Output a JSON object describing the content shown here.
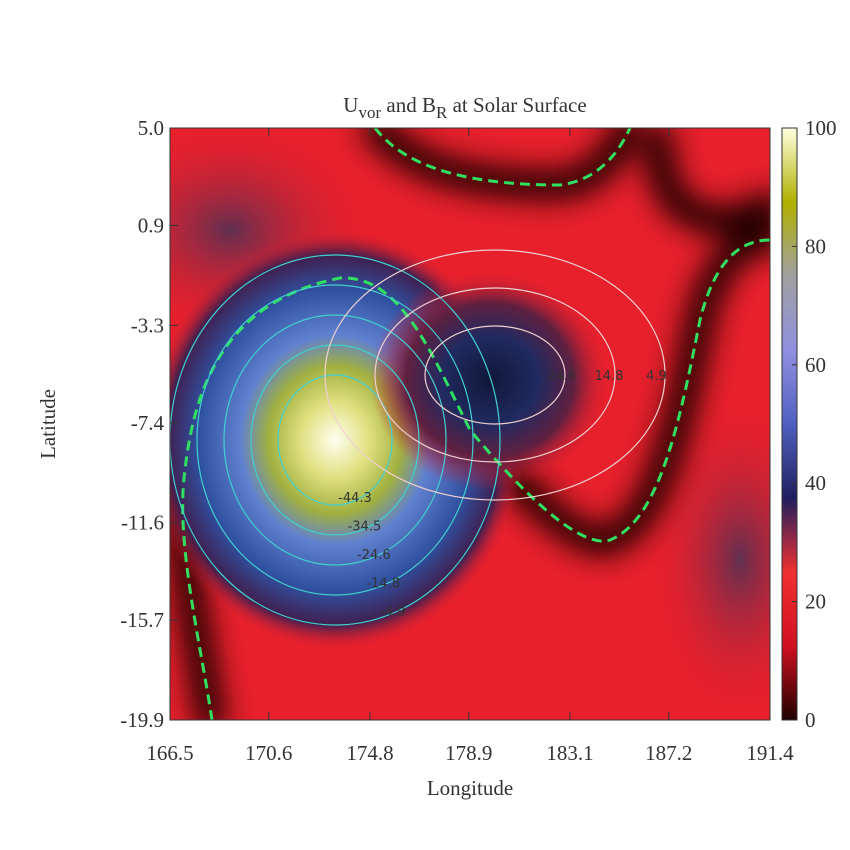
{
  "chart_data": {
    "type": "contour",
    "title": [
      "U",
      "vor",
      " and B",
      "R",
      " at Solar Surface"
    ],
    "x_label": "Longitude",
    "y_label": "Latitude",
    "xlim": [
      166.5,
      191.4
    ],
    "xticks": [
      166.5,
      170.6,
      174.8,
      178.9,
      183.1,
      187.2,
      191.4
    ],
    "ylim": [
      -19.9,
      5.0
    ],
    "yticks": [
      -19.9,
      -15.7,
      -11.6,
      -7.4,
      -3.3,
      0.9,
      {
        "value": 5.0,
        "label": "5.0"
      }
    ],
    "colorbar": {
      "range": [
        0,
        100
      ],
      "ticks": [
        0,
        20,
        40,
        60,
        80,
        100
      ],
      "colors": [
        "#200000",
        "#d01020",
        "#f03030",
        "#202060",
        "#5060c0",
        "#9090e0",
        "#a0a0a0",
        "#b0b000",
        "#ffffe0"
      ]
    },
    "negative_levels": {
      "color": "#40d0d0",
      "levels": [
        -4.9,
        -14.8,
        -24.6,
        -34.5,
        -44.3
      ]
    },
    "positive_levels": {
      "color": "#f0d0d0",
      "levels": [
        4.9,
        14.8,
        24.6
      ]
    }
  }
}
